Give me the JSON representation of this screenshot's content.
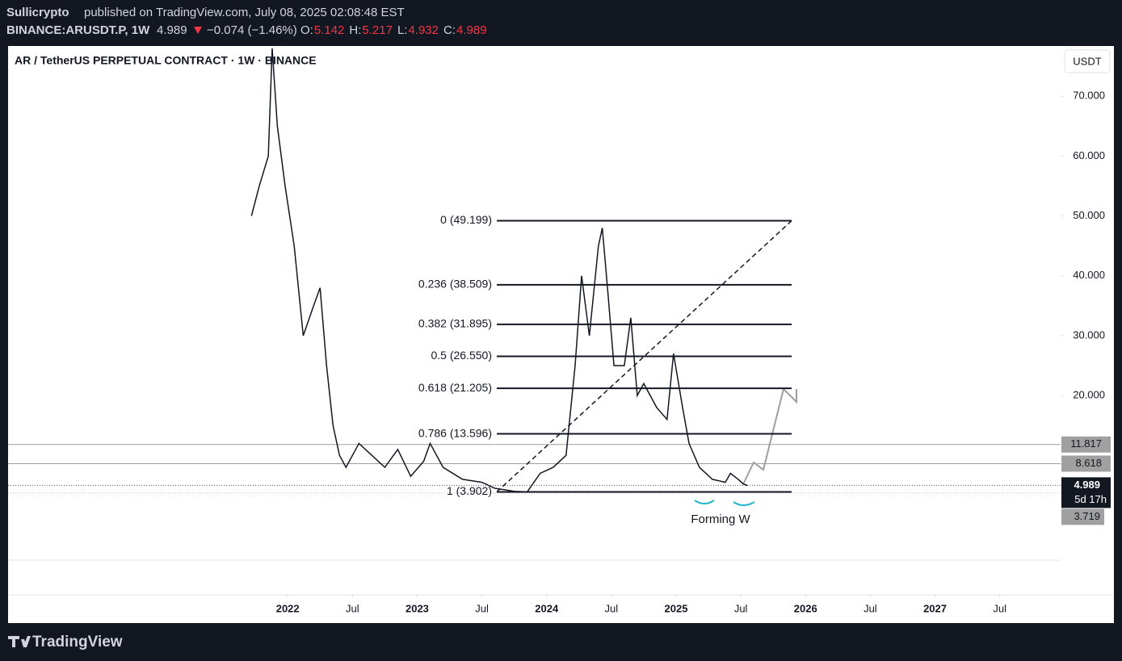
{
  "header": {
    "author": "Sullicrypto",
    "published": "published on TradingView.com, July 08, 2025 02:08:48 EST",
    "symbol": "BINANCE:ARUSDT.P, 1W",
    "last": "4.989",
    "change": "−0.074 (−1.46%)",
    "ohlc": [
      {
        "label": "O:",
        "value": "5.142"
      },
      {
        "label": "H:",
        "value": "5.217"
      },
      {
        "label": "L:",
        "value": "4.932"
      },
      {
        "label": "C:",
        "value": "4.989"
      }
    ]
  },
  "chart_data": {
    "type": "line",
    "title": "AR / TetherUS PERPETUAL CONTRACT · 1W · BINANCE",
    "currency": "USDT",
    "color": "#131722",
    "x": [
      2021.72,
      2021.78,
      2021.85,
      2021.88,
      2021.92,
      2021.98,
      2022.05,
      2022.12,
      2022.2,
      2022.25,
      2022.3,
      2022.35,
      2022.4,
      2022.45,
      2022.55,
      2022.65,
      2022.75,
      2022.85,
      2022.95,
      2023.05,
      2023.1,
      2023.2,
      2023.35,
      2023.5,
      2023.6,
      2023.75,
      2023.85,
      2023.95,
      2024.05,
      2024.15,
      2024.22,
      2024.27,
      2024.33,
      2024.4,
      2024.43,
      2024.47,
      2024.52,
      2024.6,
      2024.65,
      2024.7,
      2024.75,
      2024.85,
      2024.93,
      2024.98,
      2025.05,
      2025.1,
      2025.18,
      2025.28,
      2025.38,
      2025.42,
      2025.48,
      2025.52,
      2025.55
    ],
    "values": [
      50,
      55,
      60,
      78,
      65,
      55,
      45,
      30,
      35,
      38,
      25,
      15,
      10,
      8,
      12,
      10,
      8,
      11,
      6.5,
      9,
      12,
      8,
      6,
      5.5,
      4.5,
      4,
      3.9,
      7,
      8,
      10,
      25,
      40,
      30,
      45,
      48,
      38,
      25,
      25,
      33,
      20,
      22,
      18,
      16,
      27,
      18,
      12,
      8,
      6,
      5.5,
      7,
      6,
      5.2,
      4.989
    ],
    "xlim": [
      2019.84,
      2027.97
    ],
    "xticks": [
      {
        "value": 2022,
        "label": "2022"
      },
      {
        "value": 2022.5,
        "label": "Jul"
      },
      {
        "value": 2023,
        "label": "2023"
      },
      {
        "value": 2023.5,
        "label": "Jul"
      },
      {
        "value": 2024,
        "label": "2024"
      },
      {
        "value": 2024.5,
        "label": "Jul"
      },
      {
        "value": 2025,
        "label": "2025"
      },
      {
        "value": 2025.5,
        "label": "Jul"
      },
      {
        "value": 2026,
        "label": "2026"
      },
      {
        "value": 2026.5,
        "label": "Jul"
      },
      {
        "value": 2027,
        "label": "2027"
      },
      {
        "value": 2027.5,
        "label": "Jul"
      }
    ],
    "ylim": [
      -7.5,
      78.4
    ],
    "yticks": [
      {
        "value": 20,
        "label": "20.000"
      },
      {
        "value": 30,
        "label": "30.000"
      },
      {
        "value": 40,
        "label": "40.000"
      },
      {
        "value": 50,
        "label": "50.000"
      },
      {
        "value": 60,
        "label": "60.000"
      },
      {
        "value": 70,
        "label": "70.000"
      }
    ],
    "fib_levels": [
      {
        "value": 49.199,
        "label": "0 (49.199)"
      },
      {
        "value": 38.509,
        "label": "0.236 (38.509)"
      },
      {
        "value": 31.895,
        "label": "0.382 (31.895)"
      },
      {
        "value": 26.55,
        "label": "0.5 (26.550)"
      },
      {
        "value": 21.205,
        "label": "0.618 (21.205)"
      },
      {
        "value": 13.596,
        "label": "0.786 (13.596)"
      },
      {
        "value": 3.902,
        "label": "1 (3.902)"
      }
    ],
    "price_lines": [
      11.817,
      8.618
    ],
    "last_price": 4.989,
    "countdown": "5d 17h",
    "low_tag": 3.719,
    "annotation": "Forming W"
  },
  "footer": {
    "brand": "TradingView"
  }
}
